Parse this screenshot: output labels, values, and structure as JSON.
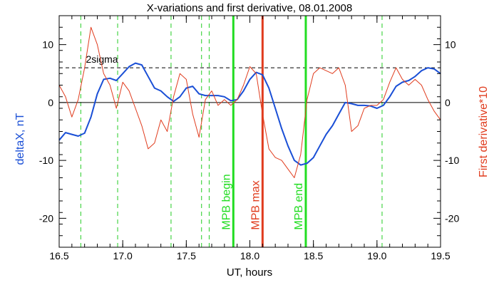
{
  "chart_data": {
    "type": "line",
    "title": "X-variations and first derivative, 08.01.2008",
    "xlabel": "UT, hours",
    "ylabel_left": "deltaX, nT",
    "ylabel_right": "First derivative*10",
    "xlim": [
      16.5,
      19.5
    ],
    "ylim": [
      -25,
      15
    ],
    "x_ticks": [
      "16.5",
      "17.0",
      "17.5",
      "18.0",
      "18.5",
      "19.0",
      "19.5"
    ],
    "y_ticks_left": [
      "10",
      "0",
      "-10",
      "-20"
    ],
    "y_ticks_right": [
      "10",
      "0",
      "-10",
      "-20"
    ],
    "y_tick_values": [
      10,
      0,
      -10,
      -20
    ],
    "threshold": {
      "label": "2sigma",
      "value": 6
    },
    "zero_line": 0,
    "colors": {
      "deltaX": "#1a4fd6",
      "derivative": "#e03c1e",
      "mpb_edge": "#22dd22",
      "mpb_max": "#e03c1e",
      "event": "#22cc22",
      "axis": "#000000"
    },
    "series": [
      {
        "name": "deltaX, nT",
        "x": [
          16.5,
          16.55,
          16.6,
          16.65,
          16.7,
          16.75,
          16.8,
          16.85,
          16.9,
          16.95,
          17.0,
          17.05,
          17.1,
          17.15,
          17.2,
          17.25,
          17.3,
          17.35,
          17.4,
          17.45,
          17.5,
          17.55,
          17.6,
          17.65,
          17.7,
          17.75,
          17.8,
          17.85,
          17.9,
          17.95,
          18.0,
          18.05,
          18.1,
          18.15,
          18.2,
          18.25,
          18.3,
          18.35,
          18.4,
          18.45,
          18.5,
          18.55,
          18.6,
          18.65,
          18.7,
          18.75,
          18.8,
          18.85,
          18.9,
          18.95,
          19.0,
          19.05,
          19.1,
          19.15,
          19.2,
          19.25,
          19.3,
          19.35,
          19.4,
          19.45,
          19.5
        ],
        "y": [
          -6.5,
          -5.2,
          -5.5,
          -5.8,
          -5.3,
          -2.5,
          1.5,
          4.0,
          4.2,
          3.8,
          5.0,
          6.2,
          6.8,
          6.5,
          4.5,
          2.5,
          2.0,
          1.0,
          0.2,
          1.0,
          2.5,
          2.8,
          1.5,
          1.2,
          1.2,
          1.2,
          1.0,
          0.3,
          0.5,
          2.0,
          4.0,
          5.2,
          4.8,
          2.5,
          -1.0,
          -4.5,
          -7.5,
          -10.0,
          -10.8,
          -10.5,
          -9.5,
          -7.5,
          -5.5,
          -4.0,
          -2.0,
          0.0,
          -0.2,
          -0.5,
          -0.5,
          -0.6,
          -1.0,
          -0.5,
          1.0,
          2.8,
          3.5,
          3.8,
          4.5,
          5.5,
          6.0,
          5.8,
          5.0
        ]
      },
      {
        "name": "First derivative*10",
        "x": [
          16.5,
          16.55,
          16.6,
          16.65,
          16.7,
          16.75,
          16.8,
          16.85,
          16.9,
          16.95,
          17.0,
          17.05,
          17.1,
          17.15,
          17.2,
          17.25,
          17.3,
          17.35,
          17.4,
          17.45,
          17.5,
          17.55,
          17.6,
          17.65,
          17.7,
          17.75,
          17.8,
          17.85,
          17.9,
          17.95,
          18.0,
          18.05,
          18.1,
          18.15,
          18.2,
          18.25,
          18.3,
          18.35,
          18.4,
          18.45,
          18.5,
          18.55,
          18.6,
          18.65,
          18.7,
          18.75,
          18.8,
          18.85,
          18.9,
          18.95,
          19.0,
          19.05,
          19.1,
          19.15,
          19.2,
          19.25,
          19.3,
          19.35,
          19.4,
          19.45,
          19.5
        ],
        "y": [
          3.0,
          1.0,
          -2.5,
          0.5,
          6.0,
          13.0,
          10.0,
          5.0,
          3.0,
          -1.0,
          3.5,
          2.0,
          -1.0,
          -4.0,
          -8.0,
          -7.0,
          -3.0,
          -5.0,
          1.0,
          5.0,
          4.0,
          -2.0,
          -6.0,
          0.5,
          2.0,
          -0.5,
          0.5,
          -0.5,
          0.5,
          3.0,
          6.2,
          5.0,
          -2.0,
          -8.0,
          -9.5,
          -10.0,
          -11.5,
          -13.0,
          -9.0,
          0.5,
          5.0,
          6.0,
          5.5,
          5.0,
          6.0,
          3.0,
          -5.0,
          -4.0,
          -1.0,
          -0.5,
          -0.5,
          0.5,
          3.5,
          6.0,
          4.0,
          3.0,
          4.0,
          3.0,
          0.5,
          -1.5,
          -3.0
        ]
      }
    ],
    "vertical_lines": [
      {
        "x": 17.87,
        "label": "MPB begin",
        "kind": "mpb_edge"
      },
      {
        "x": 18.1,
        "label": "MPB max",
        "kind": "mpb_max"
      },
      {
        "x": 18.44,
        "label": "MPB end",
        "kind": "mpb_edge"
      }
    ],
    "event_lines": [
      16.67,
      16.96,
      17.38,
      17.62,
      17.68,
      19.04
    ],
    "grid": false,
    "legend": "none"
  }
}
